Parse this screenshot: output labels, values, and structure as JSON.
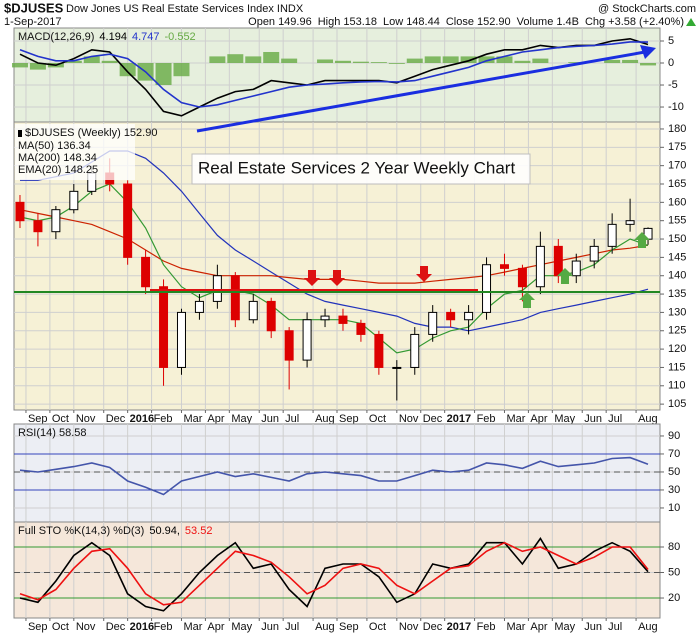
{
  "header": {
    "symbol": "$DJUSES",
    "name": "Dow Jones US Real Estate Services Index INDX",
    "source": "@ StockCharts.com",
    "date": "1-Sep-2017",
    "quote": [
      {
        "label": "Open",
        "value": "149.96"
      },
      {
        "label": "High",
        "value": "153.18"
      },
      {
        "label": "Low",
        "value": "148.44"
      },
      {
        "label": "Close",
        "value": "152.90"
      },
      {
        "label": "Volume",
        "value": "1.4B"
      },
      {
        "label": "Chg",
        "value": "+3.58 (+2.40%)"
      }
    ]
  },
  "chart_data": [
    {
      "type": "line",
      "title": "MACD(12,26,9)",
      "x": [
        0,
        3,
        6,
        9,
        12,
        15,
        18,
        21,
        24,
        27,
        30,
        33,
        36,
        39,
        42,
        45,
        48,
        51,
        54,
        57,
        60,
        63,
        66,
        69,
        72,
        75,
        78,
        81,
        84,
        87,
        90,
        93,
        96,
        99,
        102,
        105
      ],
      "xlim": [
        -1,
        107
      ],
      "ylim": [
        -13.4,
        7.95
      ],
      "yticks": [
        5,
        0,
        -5,
        -10
      ],
      "background": "#e6efdd",
      "series": [
        {
          "name": "4.194",
          "color": "#000000",
          "values": [
            2,
            0,
            -0.5,
            1,
            3,
            2.5,
            -2,
            -6,
            -11,
            -12,
            -10,
            -8,
            -6.5,
            -6,
            -4,
            -4.5,
            -5,
            -4,
            -4,
            -4,
            -4,
            -4.5,
            -3,
            -1.5,
            -0.5,
            0.5,
            2,
            3,
            3,
            4,
            3.5,
            4,
            4,
            5,
            5.5,
            4.194
          ]
        },
        {
          "name": "4.747",
          "color": "#2233cc",
          "values": [
            3,
            1.5,
            0.5,
            0.5,
            1.5,
            2,
            1,
            -2,
            -6,
            -9,
            -10,
            -9.5,
            -8.5,
            -7.5,
            -6.5,
            -5.5,
            -5,
            -4.8,
            -4.5,
            -4.3,
            -4.2,
            -4.3,
            -4,
            -3,
            -2,
            -1,
            0.5,
            1.5,
            2.5,
            3,
            3.5,
            3.8,
            4,
            4.3,
            4.8,
            4.747
          ]
        },
        {
          "name": "-0.552",
          "color": "#66aa44",
          "type": "bar",
          "values": [
            -1,
            -1.5,
            -1,
            0.5,
            1.5,
            0.5,
            -3,
            -4,
            -5,
            -3,
            0,
            1.5,
            2,
            1.5,
            2.5,
            1,
            0,
            0.8,
            0.5,
            0.3,
            0.2,
            -0.2,
            1,
            1.5,
            1.5,
            1.5,
            1.5,
            1.5,
            0.5,
            1,
            0,
            0.2,
            0,
            0.7,
            0.7,
            -0.552
          ]
        }
      ]
    },
    {
      "type": "candlestick",
      "title": "$DJUSES (Weekly) 152.90",
      "annotation": "Real Estate Services 2 Year Weekly Chart",
      "x": [
        0,
        3,
        6,
        9,
        12,
        15,
        18,
        21,
        24,
        27,
        30,
        33,
        36,
        39,
        42,
        45,
        48,
        51,
        54,
        57,
        60,
        63,
        66,
        69,
        72,
        75,
        78,
        81,
        84,
        87,
        90,
        93,
        96,
        99,
        102,
        105
      ],
      "open": [
        160,
        155,
        152,
        158,
        163,
        168,
        165,
        145,
        137,
        115,
        130,
        133,
        140,
        128,
        133,
        125,
        117,
        128,
        129,
        127,
        124,
        115,
        115,
        124,
        130,
        128,
        130,
        143,
        142,
        137,
        148,
        140,
        144,
        148,
        154,
        149.96
      ],
      "high": [
        162,
        157,
        159,
        165,
        170,
        172,
        166,
        147,
        139,
        131,
        135,
        143,
        141,
        135,
        134,
        126,
        130,
        131,
        131,
        128,
        125,
        117,
        126,
        132,
        131,
        132,
        145,
        146,
        143,
        152,
        150,
        146,
        150,
        157,
        161,
        153.18
      ],
      "low": [
        153,
        148,
        150,
        157,
        162,
        163,
        143,
        135,
        110,
        113,
        128,
        131,
        126,
        127,
        123,
        109,
        115,
        126,
        125,
        122,
        113,
        106,
        113,
        122,
        126,
        124,
        128,
        140,
        133,
        135,
        138,
        138,
        142,
        146,
        152,
        148.44
      ],
      "close": [
        155,
        152,
        158,
        163,
        168,
        165,
        145,
        137,
        115,
        130,
        133,
        140,
        128,
        133,
        125,
        117,
        128,
        129,
        127,
        124,
        115,
        115,
        124,
        130,
        128,
        130,
        143,
        142,
        137,
        148,
        140,
        144,
        148,
        154,
        155,
        152.9
      ],
      "up_color": "#000000",
      "down_color": "#dd0000",
      "xlim": [
        -1,
        107
      ],
      "ylim": [
        103.4,
        181.9
      ],
      "yticks": [
        105,
        110,
        115,
        120,
        125,
        130,
        135,
        140,
        145,
        150,
        155,
        160,
        165,
        170,
        175,
        180
      ],
      "background": "#f6f1d6",
      "xticks": [
        {
          "value": 1,
          "label": "Sep"
        },
        {
          "value": 5,
          "label": "Oct"
        },
        {
          "value": 9,
          "label": "Nov"
        },
        {
          "value": 14,
          "label": "Dec"
        },
        {
          "value": 18,
          "label": "2016"
        },
        {
          "value": 22,
          "label": "Feb"
        },
        {
          "value": 27,
          "label": "Mar"
        },
        {
          "value": 31,
          "label": "Apr"
        },
        {
          "value": 35,
          "label": "May"
        },
        {
          "value": 40,
          "label": "Jun"
        },
        {
          "value": 44,
          "label": "Jul"
        },
        {
          "value": 49,
          "label": "Aug"
        },
        {
          "value": 53,
          "label": "Sep"
        },
        {
          "value": 58,
          "label": "Oct"
        },
        {
          "value": 63,
          "label": "Nov"
        },
        {
          "value": 67,
          "label": "Dec"
        },
        {
          "value": 71,
          "label": "2017"
        },
        {
          "value": 76,
          "label": "Feb"
        },
        {
          "value": 81,
          "label": "Mar"
        },
        {
          "value": 85,
          "label": "Apr"
        },
        {
          "value": 89,
          "label": "May"
        },
        {
          "value": 94,
          "label": "Jun"
        },
        {
          "value": 98,
          "label": "Jul"
        },
        {
          "value": 103,
          "label": "Aug"
        }
      ],
      "series": [
        {
          "name": "MA(50) 136.34",
          "color": "#2233bb",
          "values": [
            166,
            166,
            167,
            168,
            171,
            174,
            174,
            172,
            168,
            163,
            157,
            151,
            147,
            144,
            141,
            138,
            135,
            133,
            132,
            131,
            130,
            129,
            127,
            126,
            126,
            125,
            126,
            127,
            128,
            130,
            131,
            132,
            133,
            134,
            135,
            136.34
          ]
        },
        {
          "name": "MA(200) 148.34",
          "color": "#cc2200",
          "values": [
            158,
            157,
            156,
            155,
            154,
            152,
            150,
            147,
            144,
            142,
            141,
            140,
            140,
            140,
            140,
            139.5,
            139,
            139,
            139,
            138.5,
            138,
            138,
            138,
            138.5,
            139,
            139.5,
            140,
            141,
            142,
            143,
            144,
            145,
            146,
            147,
            147.5,
            148.34
          ]
        },
        {
          "name": "EMA(20) 148.25",
          "color": "#339933",
          "values": [
            156,
            155,
            156,
            159,
            163,
            165,
            160,
            153,
            143,
            137,
            134,
            136,
            136,
            135,
            132,
            128,
            128,
            128,
            128,
            127,
            123,
            119,
            120,
            123,
            125,
            126,
            131,
            135,
            136,
            140,
            140,
            141,
            143,
            147,
            150,
            148.25
          ]
        }
      ]
    },
    {
      "type": "line",
      "title": "RSI(14) 58.58",
      "x": [
        0,
        3,
        6,
        9,
        12,
        15,
        18,
        21,
        24,
        27,
        30,
        33,
        36,
        39,
        42,
        45,
        48,
        51,
        54,
        57,
        60,
        63,
        66,
        69,
        72,
        75,
        78,
        81,
        84,
        87,
        90,
        93,
        96,
        99,
        102,
        105
      ],
      "xlim": [
        -1,
        107
      ],
      "ylim": [
        -5.6,
        103.3
      ],
      "yticks": [
        90,
        70,
        50,
        30,
        10
      ],
      "background": "#eceef4",
      "levels": [
        {
          "value": 70,
          "color": "#3344bb"
        },
        {
          "value": 50,
          "color": "#555555",
          "dash": true
        },
        {
          "value": 30,
          "color": "#3344bb"
        }
      ],
      "series": [
        {
          "name": "RSI(14) 58.58",
          "color": "#4455aa",
          "values": [
            52,
            50,
            53,
            56,
            60,
            55,
            40,
            33,
            25,
            40,
            45,
            50,
            45,
            48,
            44,
            40,
            48,
            50,
            48,
            46,
            40,
            40,
            46,
            52,
            50,
            52,
            60,
            58,
            54,
            62,
            56,
            58,
            60,
            65,
            66,
            58.58
          ]
        }
      ]
    },
    {
      "type": "line",
      "title": "Full STO %K(14,3) %D(3)",
      "x": [
        0,
        3,
        6,
        9,
        12,
        15,
        18,
        21,
        24,
        27,
        30,
        33,
        36,
        39,
        42,
        45,
        48,
        51,
        54,
        57,
        60,
        63,
        66,
        69,
        72,
        75,
        78,
        81,
        84,
        87,
        90,
        93,
        96,
        99,
        102,
        105
      ],
      "xlim": [
        -1,
        107
      ],
      "ylim": [
        -3.5,
        109.4
      ],
      "yticks": [
        80,
        50,
        20
      ],
      "background": "#f5e7da",
      "levels": [
        {
          "value": 80,
          "color": "#339933"
        },
        {
          "value": 50,
          "color": "#555555",
          "dash": true
        },
        {
          "value": 20,
          "color": "#339933"
        }
      ],
      "xticks": [
        {
          "value": 1,
          "label": "Sep"
        },
        {
          "value": 5,
          "label": "Oct"
        },
        {
          "value": 9,
          "label": "Nov"
        },
        {
          "value": 14,
          "label": "Dec"
        },
        {
          "value": 18,
          "label": "2016"
        },
        {
          "value": 22,
          "label": "Feb"
        },
        {
          "value": 27,
          "label": "Mar"
        },
        {
          "value": 31,
          "label": "Apr"
        },
        {
          "value": 35,
          "label": "May"
        },
        {
          "value": 40,
          "label": "Jun"
        },
        {
          "value": 44,
          "label": "Jul"
        },
        {
          "value": 49,
          "label": "Aug"
        },
        {
          "value": 53,
          "label": "Sep"
        },
        {
          "value": 58,
          "label": "Oct"
        },
        {
          "value": 63,
          "label": "Nov"
        },
        {
          "value": 67,
          "label": "Dec"
        },
        {
          "value": 71,
          "label": "2017"
        },
        {
          "value": 76,
          "label": "Feb"
        },
        {
          "value": 81,
          "label": "Mar"
        },
        {
          "value": 85,
          "label": "Apr"
        },
        {
          "value": 89,
          "label": "May"
        },
        {
          "value": 94,
          "label": "Jun"
        },
        {
          "value": 98,
          "label": "Jul"
        },
        {
          "value": 103,
          "label": "Aug"
        }
      ],
      "series": [
        {
          "name": "50.94,",
          "color": "#000000",
          "values": [
            20,
            15,
            40,
            70,
            85,
            70,
            25,
            10,
            5,
            25,
            50,
            70,
            85,
            55,
            60,
            30,
            10,
            55,
            60,
            60,
            45,
            15,
            25,
            60,
            55,
            60,
            85,
            85,
            60,
            90,
            55,
            60,
            75,
            85,
            75,
            50.94
          ]
        },
        {
          "name": "53.52",
          "color": "#ee1111",
          "values": [
            25,
            18,
            30,
            55,
            75,
            78,
            55,
            25,
            12,
            15,
            35,
            55,
            75,
            70,
            62,
            45,
            25,
            35,
            55,
            60,
            55,
            35,
            25,
            40,
            55,
            58,
            75,
            85,
            75,
            80,
            70,
            60,
            68,
            80,
            80,
            53.52
          ]
        }
      ]
    }
  ]
}
